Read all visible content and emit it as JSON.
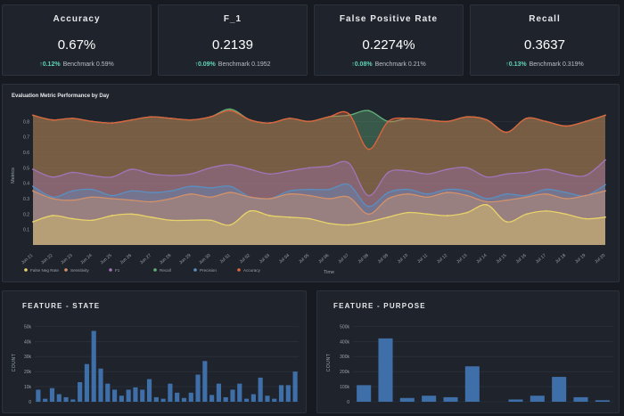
{
  "kpis": [
    {
      "title": "Accuracy",
      "value": "0.67%",
      "delta": "0.12%",
      "benchmark": "Benchmark 0.59%"
    },
    {
      "title": "F_1",
      "value": "0.2139",
      "delta": "0.09%",
      "benchmark": "Benchmark 0.1952"
    },
    {
      "title": "False Positive Rate",
      "value": "0.2274%",
      "delta": "0.08%",
      "benchmark": "Benchmark 0.21%"
    },
    {
      "title": "Recall",
      "value": "0.3637",
      "delta": "0.13%",
      "benchmark": "Benchmark 0.319%"
    }
  ],
  "delta_arrow": "↑",
  "colors": {
    "accent_up": "#5fd3b4",
    "bar": "#3f6fa8",
    "panel": "#1f242c",
    "background": "#171b21"
  },
  "chart_data": [
    {
      "type": "area",
      "title": "Evaluation Metric Performance by Day",
      "xlabel": "Time",
      "ylabel": "Metrics",
      "ylim": [
        0,
        0.9
      ],
      "yticks": [
        "0.1",
        "0.2",
        "0.3",
        "0.4",
        "0.5",
        "0.6",
        "0.7",
        "0.8"
      ],
      "x": [
        "Jun 21",
        "Jun 22",
        "Jun 23",
        "Jun 24",
        "Jun 25",
        "Jun 26",
        "Jun 27",
        "Jun 28",
        "Jun 29",
        "Jun 30",
        "Jul 01",
        "Jul 02",
        "Jul 03",
        "Jul 04",
        "Jul 05",
        "Jul 06",
        "Jul 07",
        "Jul 08",
        "Jul 09",
        "Jul 10",
        "Jul 11",
        "Jul 12",
        "Jul 13",
        "Jul 14",
        "Jul 15",
        "Jul 16",
        "Jul 17",
        "Jul 18",
        "Jul 19",
        "Jul 20"
      ],
      "legend_position": "bottom-left",
      "series": [
        {
          "name": "False Neg Rate",
          "color": "#e8d36a",
          "values": [
            0.15,
            0.19,
            0.17,
            0.16,
            0.19,
            0.2,
            0.18,
            0.16,
            0.16,
            0.16,
            0.13,
            0.22,
            0.19,
            0.18,
            0.17,
            0.14,
            0.13,
            0.15,
            0.18,
            0.21,
            0.2,
            0.19,
            0.21,
            0.26,
            0.15,
            0.2,
            0.22,
            0.2,
            0.17,
            0.18
          ]
        },
        {
          "name": "Sensitivity",
          "color": "#d2916a",
          "values": [
            0.35,
            0.3,
            0.29,
            0.31,
            0.3,
            0.29,
            0.28,
            0.3,
            0.33,
            0.31,
            0.34,
            0.31,
            0.3,
            0.33,
            0.32,
            0.3,
            0.31,
            0.2,
            0.3,
            0.33,
            0.31,
            0.34,
            0.32,
            0.28,
            0.29,
            0.31,
            0.33,
            0.3,
            0.32,
            0.35
          ]
        },
        {
          "name": "F1",
          "color": "#a274b8",
          "values": [
            0.49,
            0.44,
            0.47,
            0.45,
            0.44,
            0.49,
            0.46,
            0.45,
            0.46,
            0.5,
            0.52,
            0.49,
            0.46,
            0.48,
            0.5,
            0.51,
            0.53,
            0.32,
            0.47,
            0.48,
            0.46,
            0.49,
            0.5,
            0.44,
            0.46,
            0.47,
            0.49,
            0.46,
            0.45,
            0.55
          ]
        },
        {
          "name": "Recall",
          "color": "#62b07a",
          "values": [
            0.84,
            0.81,
            0.82,
            0.8,
            0.79,
            0.81,
            0.83,
            0.82,
            0.81,
            0.83,
            0.88,
            0.81,
            0.79,
            0.82,
            0.8,
            0.83,
            0.84,
            0.87,
            0.8,
            0.82,
            0.81,
            0.8,
            0.83,
            0.81,
            0.73,
            0.82,
            0.8,
            0.77,
            0.8,
            0.84
          ]
        },
        {
          "name": "Precision",
          "color": "#5a8fc0",
          "values": [
            0.38,
            0.31,
            0.35,
            0.36,
            0.32,
            0.35,
            0.34,
            0.35,
            0.38,
            0.37,
            0.38,
            0.31,
            0.3,
            0.35,
            0.36,
            0.36,
            0.39,
            0.25,
            0.34,
            0.36,
            0.33,
            0.36,
            0.35,
            0.3,
            0.33,
            0.32,
            0.36,
            0.34,
            0.32,
            0.39
          ]
        },
        {
          "name": "Accuracy",
          "color": "#e0643c",
          "values": [
            0.84,
            0.81,
            0.82,
            0.8,
            0.79,
            0.81,
            0.83,
            0.82,
            0.81,
            0.83,
            0.87,
            0.81,
            0.79,
            0.82,
            0.8,
            0.83,
            0.85,
            0.62,
            0.8,
            0.82,
            0.81,
            0.8,
            0.83,
            0.81,
            0.73,
            0.82,
            0.8,
            0.77,
            0.8,
            0.84
          ]
        }
      ]
    },
    {
      "type": "bar",
      "title": "FEATURE - STATE",
      "ylabel": "COUNT",
      "ylim": [
        0,
        52000
      ],
      "yticks": [
        "0",
        "10k",
        "20k",
        "30k",
        "40k",
        "50k"
      ],
      "values": [
        8000,
        2000,
        9000,
        5000,
        3000,
        1500,
        13000,
        25000,
        47000,
        22000,
        12000,
        8000,
        4000,
        8000,
        9500,
        8000,
        15000,
        3000,
        2000,
        12000,
        6000,
        2500,
        6000,
        18000,
        27000,
        4500,
        12000,
        3000,
        8000,
        12000,
        2000,
        5000,
        16000,
        4000,
        2000,
        11000,
        11000,
        20000
      ]
    },
    {
      "type": "bar",
      "title": "FEATURE - PURPOSE",
      "ylabel": "COUNT",
      "ylim": [
        0,
        520000
      ],
      "yticks": [
        "0",
        "100k",
        "200k",
        "300k",
        "400k",
        "500k"
      ],
      "values": [
        110000,
        420000,
        25000,
        40000,
        30000,
        235000,
        0,
        15000,
        40000,
        165000,
        30000,
        10000
      ]
    }
  ]
}
